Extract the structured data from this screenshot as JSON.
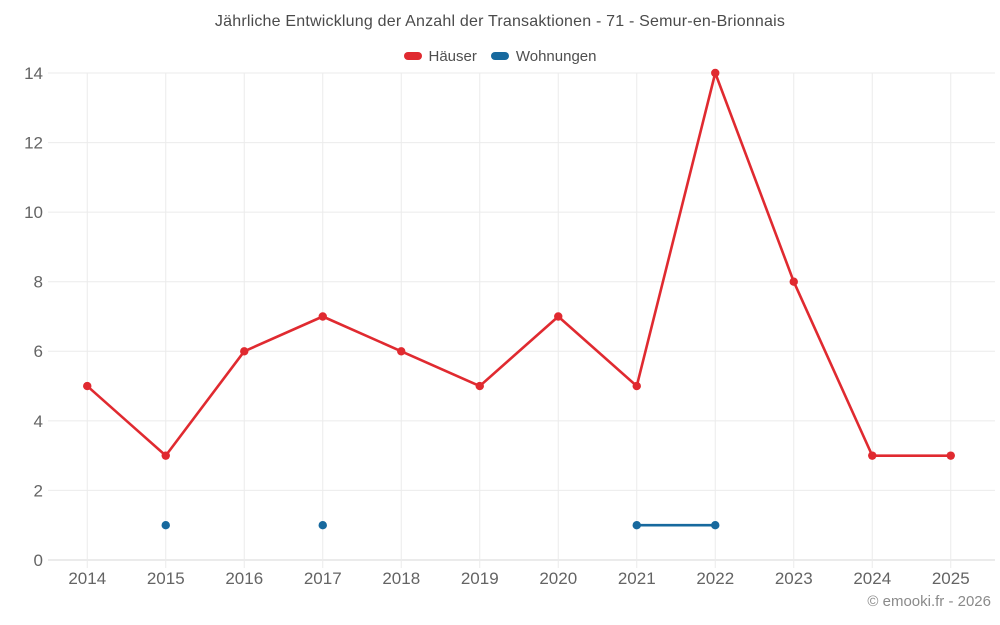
{
  "header": {
    "title": "Jährliche Entwicklung der Anzahl der Transaktionen - 71 - Semur-en-Brionnais"
  },
  "legend": {
    "items": [
      {
        "label": "Häuser",
        "color": "#e02a30"
      },
      {
        "label": "Wohnungen",
        "color": "#17699e"
      }
    ]
  },
  "footer": {
    "credit": "© emooki.fr - 2026"
  },
  "chart_data": {
    "type": "line",
    "title": "Jährliche Entwicklung der Anzahl der Transaktionen - 71 - Semur-en-Brionnais",
    "categories": [
      "2014",
      "2015",
      "2016",
      "2017",
      "2018",
      "2019",
      "2020",
      "2021",
      "2022",
      "2023",
      "2024",
      "2025"
    ],
    "series": [
      {
        "name": "Häuser",
        "color": "#e02a30",
        "values": [
          5,
          3,
          6,
          7,
          6,
          5,
          7,
          5,
          14,
          8,
          3,
          3
        ]
      },
      {
        "name": "Wohnungen",
        "color": "#17699e",
        "values": [
          null,
          1,
          null,
          1,
          null,
          null,
          null,
          1,
          1,
          null,
          null,
          null
        ]
      }
    ],
    "xlabel": "",
    "ylabel": "",
    "ylim": [
      0,
      14
    ],
    "ytick_step": 2,
    "grid": true,
    "legend_position": "top",
    "style": {
      "grid_color": "#ebebeb",
      "axis_line_color": "#d7d7d7",
      "tick_label_color": "#646464",
      "tick_font_size": 17,
      "marker_radius": 4.2,
      "line_width": 2.6
    }
  }
}
